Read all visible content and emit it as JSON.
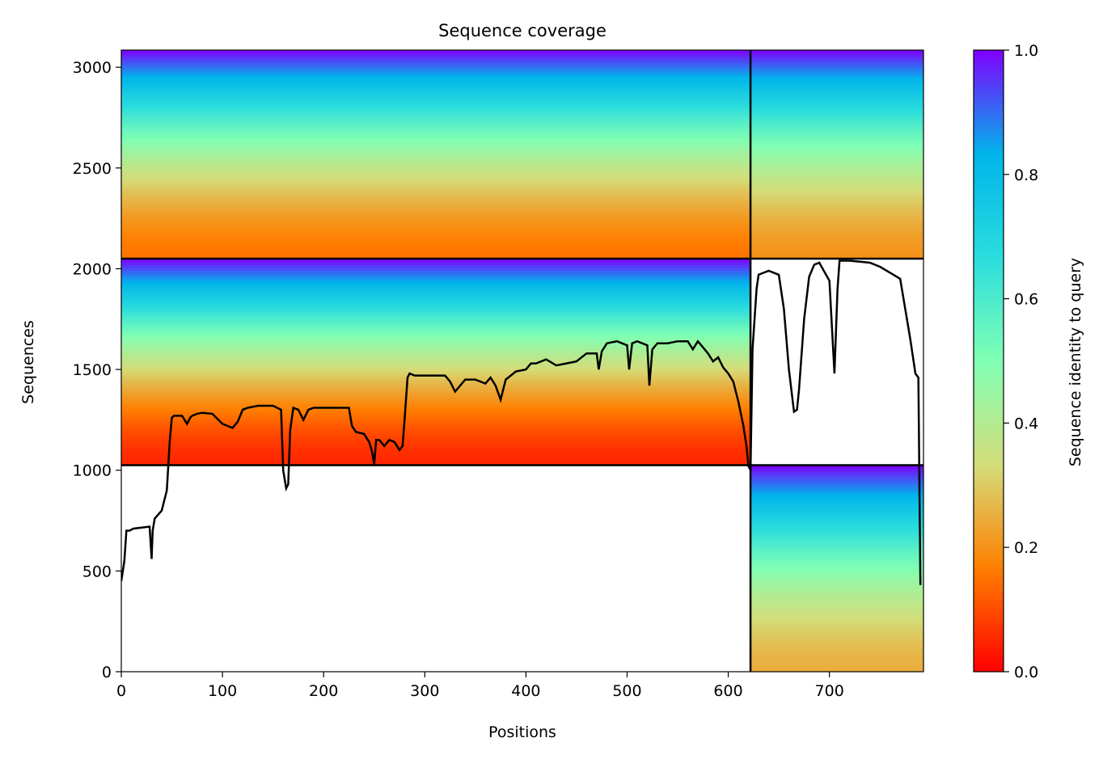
{
  "chart_data": {
    "type": "heatmap",
    "title": "Sequence coverage",
    "xlabel": "Positions",
    "ylabel": "Sequences",
    "xlim": [
      0,
      793
    ],
    "ylim": [
      0,
      3085
    ],
    "x_ticks": [
      0,
      100,
      200,
      300,
      400,
      500,
      600,
      700
    ],
    "y_ticks": [
      0,
      500,
      1000,
      1500,
      2000,
      2500,
      3000
    ],
    "colorbar": {
      "label": "Sequence identity to query",
      "range": [
        0.0,
        1.0
      ],
      "ticks": [
        0.0,
        0.2,
        0.4,
        0.6,
        0.8,
        1.0
      ],
      "colormap": "rainbow_r",
      "stops": [
        "#ff0000",
        "#ff7f00",
        "#d4dd7a",
        "#80ffb4",
        "#2adddd",
        "#00b4eb",
        "#8000ff"
      ]
    },
    "segment_boundaries": {
      "chain_break_position": 622,
      "block_boundaries_sequences": [
        1025,
        2050
      ]
    },
    "blocks": [
      {
        "x_range": [
          0,
          622
        ],
        "y_range": [
          2050,
          3085
        ],
        "identity_top": 1.0,
        "identity_bottom": 0.15
      },
      {
        "x_range": [
          0,
          622
        ],
        "y_range": [
          1025,
          2050
        ],
        "identity_top": 1.0,
        "identity_bottom": 0.05
      },
      {
        "x_range": [
          622,
          793
        ],
        "y_range": [
          2050,
          3085
        ],
        "identity_top": 1.0,
        "identity_bottom": 0.2
      },
      {
        "x_range": [
          622,
          793
        ],
        "y_range": [
          0,
          1025
        ],
        "identity_top": 1.0,
        "identity_bottom": 0.25
      }
    ],
    "coverage_line": {
      "color": "#000000",
      "x": [
        0,
        3,
        5,
        8,
        12,
        20,
        28,
        30,
        31,
        33,
        40,
        45,
        48,
        50,
        52,
        55,
        60,
        65,
        68,
        70,
        75,
        80,
        90,
        100,
        105,
        110,
        115,
        120,
        125,
        135,
        150,
        158,
        160,
        163,
        165,
        167,
        170,
        175,
        180,
        185,
        190,
        200,
        210,
        225,
        228,
        232,
        240,
        245,
        248,
        250,
        252,
        255,
        260,
        265,
        270,
        275,
        278,
        280,
        283,
        285,
        290,
        300,
        310,
        320,
        325,
        330,
        335,
        340,
        350,
        360,
        365,
        370,
        375,
        380,
        390,
        400,
        405,
        410,
        420,
        430,
        440,
        450,
        460,
        470,
        472,
        475,
        480,
        490,
        500,
        502,
        505,
        510,
        520,
        522,
        525,
        530,
        540,
        550,
        560,
        565,
        570,
        575,
        580,
        585,
        590,
        595,
        600,
        605,
        610,
        615,
        618,
        620,
        622,
        624,
        626,
        628,
        630,
        635,
        640,
        650,
        655,
        660,
        665,
        668,
        670,
        675,
        680,
        685,
        690,
        700,
        705,
        708,
        710,
        715,
        720,
        740,
        750,
        760,
        770,
        780,
        785,
        788,
        790,
        792
      ],
      "y": [
        450,
        550,
        700,
        700,
        710,
        715,
        720,
        560,
        700,
        760,
        800,
        900,
        1150,
        1260,
        1270,
        1270,
        1270,
        1230,
        1260,
        1270,
        1280,
        1285,
        1280,
        1230,
        1220,
        1210,
        1240,
        1300,
        1310,
        1320,
        1320,
        1300,
        1000,
        910,
        930,
        1200,
        1310,
        1300,
        1250,
        1300,
        1310,
        1310,
        1310,
        1310,
        1220,
        1190,
        1180,
        1140,
        1090,
        1030,
        1150,
        1150,
        1120,
        1150,
        1140,
        1100,
        1120,
        1250,
        1460,
        1480,
        1470,
        1470,
        1470,
        1470,
        1440,
        1390,
        1420,
        1450,
        1450,
        1430,
        1460,
        1420,
        1350,
        1450,
        1490,
        1500,
        1530,
        1530,
        1550,
        1520,
        1530,
        1540,
        1580,
        1580,
        1500,
        1590,
        1630,
        1640,
        1620,
        1500,
        1630,
        1640,
        1620,
        1420,
        1600,
        1630,
        1630,
        1640,
        1640,
        1600,
        1640,
        1610,
        1580,
        1540,
        1560,
        1510,
        1480,
        1440,
        1340,
        1220,
        1120,
        1020,
        1000,
        1600,
        1750,
        1900,
        1970,
        1980,
        1990,
        1970,
        1800,
        1500,
        1290,
        1300,
        1400,
        1750,
        1960,
        2020,
        2030,
        1940,
        1480,
        1900,
        2040,
        2040,
        2040,
        2030,
        2010,
        1980,
        1950,
        1650,
        1480,
        1460,
        430
      ]
    }
  }
}
